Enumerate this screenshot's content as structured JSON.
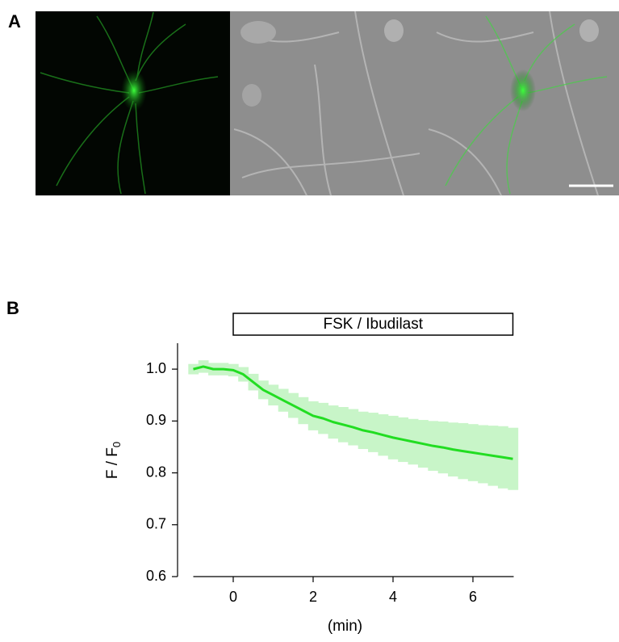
{
  "panels": [
    "A",
    "B"
  ],
  "chart_data": {
    "type": "line",
    "annotation": {
      "text": "FSK / Ibudilast",
      "x": [
        0,
        7
      ]
    },
    "ylabel": [
      "F / F",
      "0"
    ],
    "xlabel": "(min)",
    "x": [
      -1,
      -0.75,
      -0.5,
      -0.25,
      0,
      0.25,
      0.5,
      0.75,
      1,
      1.25,
      1.5,
      1.75,
      2,
      2.25,
      2.5,
      2.75,
      3,
      3.25,
      3.5,
      3.75,
      4,
      4.25,
      4.5,
      4.75,
      5,
      5.25,
      5.5,
      5.75,
      6,
      6.25,
      6.5,
      6.75,
      7
    ],
    "series": [
      {
        "color": "#22dd22",
        "error_color": "#c8f5c8",
        "values": [
          1.0,
          1.005,
          1.0,
          1.0,
          0.998,
          0.99,
          0.975,
          0.96,
          0.95,
          0.94,
          0.93,
          0.92,
          0.91,
          0.905,
          0.898,
          0.893,
          0.888,
          0.882,
          0.878,
          0.873,
          0.868,
          0.864,
          0.86,
          0.856,
          0.852,
          0.849,
          0.845,
          0.842,
          0.839,
          0.836,
          0.833,
          0.83,
          0.827
        ],
        "error": [
          0.01,
          0.012,
          0.012,
          0.012,
          0.012,
          0.014,
          0.016,
          0.018,
          0.02,
          0.022,
          0.024,
          0.026,
          0.028,
          0.03,
          0.032,
          0.034,
          0.035,
          0.036,
          0.038,
          0.04,
          0.042,
          0.043,
          0.044,
          0.046,
          0.048,
          0.05,
          0.052,
          0.054,
          0.055,
          0.056,
          0.058,
          0.06,
          0.06
        ]
      }
    ],
    "xlim": [
      -1,
      7
    ],
    "ylim": [
      0.6,
      1.05
    ],
    "xticks": [
      0,
      2,
      4,
      6
    ],
    "yticks": [
      0.6,
      0.7,
      0.8,
      0.9,
      {
        "value": 1.0,
        "label": "1.0"
      }
    ]
  }
}
